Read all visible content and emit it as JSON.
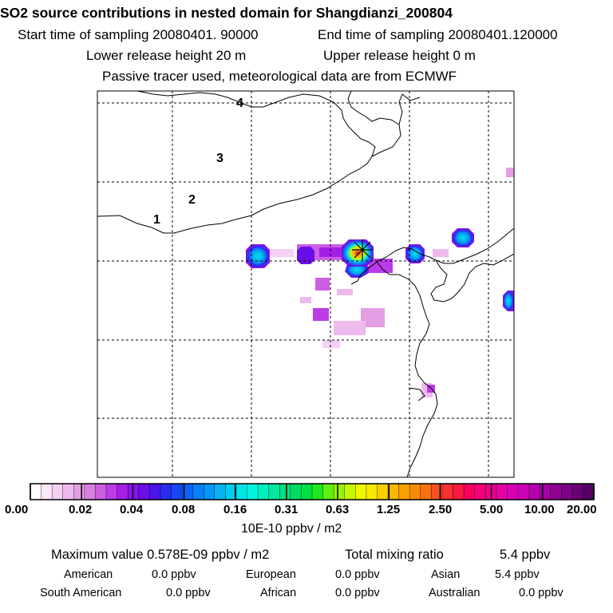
{
  "header": {
    "title": "SO2 source contributions in nested domain for Shangdianzi_200804",
    "start": "Start time of sampling 20080401. 90000",
    "end": "End time of sampling 20080401.120000",
    "lower": "Lower release height   20 m",
    "upper": "Upper release height    0 m",
    "note": "Passive tracer used, meteorological data are from ECMWF"
  },
  "map": {
    "trajectory_labels": [
      "1",
      "2",
      "3",
      "4"
    ],
    "station_marker": "receptor-star-icon"
  },
  "chart_data": {
    "type": "heatmap",
    "title": "SO2 source contributions in nested domain for Shangdianzi_200804",
    "colorbar": {
      "tick_labels": [
        "0.00",
        "0.02",
        "0.04",
        "0.08",
        "0.16",
        "0.31",
        "0.63",
        "1.25",
        "2.50",
        "5.00",
        "10.00",
        "20.00"
      ],
      "unit": "10E-10 ppbv / m2",
      "colors": [
        "#ffffff",
        "#fbe8fb",
        "#f5d0f5",
        "#eebaee",
        "#e39ee3",
        "#d880e0",
        "#cc5ee4",
        "#bb3ce8",
        "#a51ee8",
        "#8a10e8",
        "#6a0ee8",
        "#4a14ec",
        "#2a2cf0",
        "#1848f4",
        "#0c64f8",
        "#0880f8",
        "#0498f4",
        "#04b4f0",
        "#04ccec",
        "#00e4e8",
        "#00f4e0",
        "#00f0c0",
        "#00e8a0",
        "#00e080",
        "#00dc60",
        "#00e040",
        "#20e820",
        "#60f010",
        "#98f400",
        "#c8f800",
        "#f0f800",
        "#f8e800",
        "#f8d000",
        "#f8b800",
        "#f8a000",
        "#f88c00",
        "#f87010",
        "#f85020",
        "#f83030",
        "#f81840",
        "#f80060",
        "#f40078",
        "#ec0090",
        "#e400a4",
        "#d800b4",
        "#cc00b8",
        "#b800b0",
        "#a400a4",
        "#900094",
        "#7c0084",
        "#680074",
        "#540064"
      ]
    },
    "hotspots": [
      {
        "label": "receptor",
        "value": 5.78,
        "unit": "10E-10 ppbv / m2"
      }
    ]
  },
  "summary": {
    "max_label": "Maximum value  0.578E-09 ppbv / m2",
    "total_label": "Total mixing ratio",
    "total_value": "5.4 ppbv",
    "regions": [
      {
        "name": "American",
        "value": "0.0 ppbv"
      },
      {
        "name": "European",
        "value": "0.0 ppbv"
      },
      {
        "name": "Asian",
        "value": "5.4 ppbv"
      },
      {
        "name": "South American",
        "value": "0.0 ppbv"
      },
      {
        "name": "African",
        "value": "0.0 ppbv"
      },
      {
        "name": "Australian",
        "value": "0.0 ppbv"
      }
    ]
  }
}
